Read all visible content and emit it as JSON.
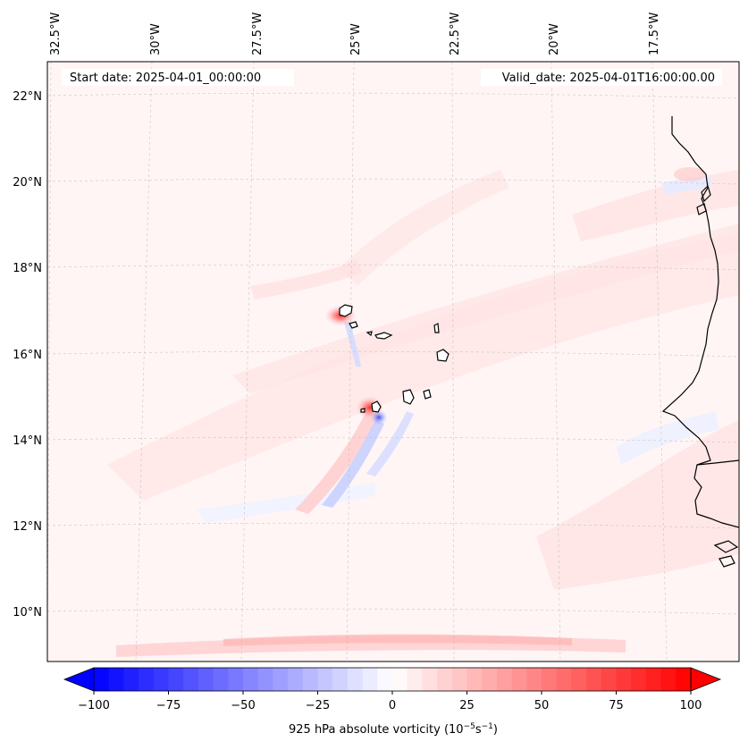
{
  "map": {
    "start_date_label": "Start date: 2025-04-01_00:00:00",
    "valid_date_label": "Valid_date: 2025-04-01T16:00:00.00",
    "longitude_labels": [
      "32.5°W",
      "30°W",
      "27.5°W",
      "25°W",
      "22.5°W",
      "20°W",
      "17.5°W"
    ],
    "latitude_labels": [
      "22°N",
      "20°N",
      "18°N",
      "16°N",
      "14°N",
      "12°N",
      "10°N"
    ],
    "colorbar": {
      "ticks": [
        "−100",
        "−75",
        "−50",
        "−25",
        "0",
        "25",
        "50",
        "75",
        "100"
      ],
      "label_main": "925 hPa absolute vorticity (10",
      "label_exp1": "−5",
      "label_mid": "s",
      "label_exp2": "−1",
      "label_end": ")",
      "min": -100,
      "max": 100,
      "colors": {
        "negative": "#0000ff",
        "neutral": "#ffffff",
        "positive": "#ff0000"
      }
    }
  }
}
